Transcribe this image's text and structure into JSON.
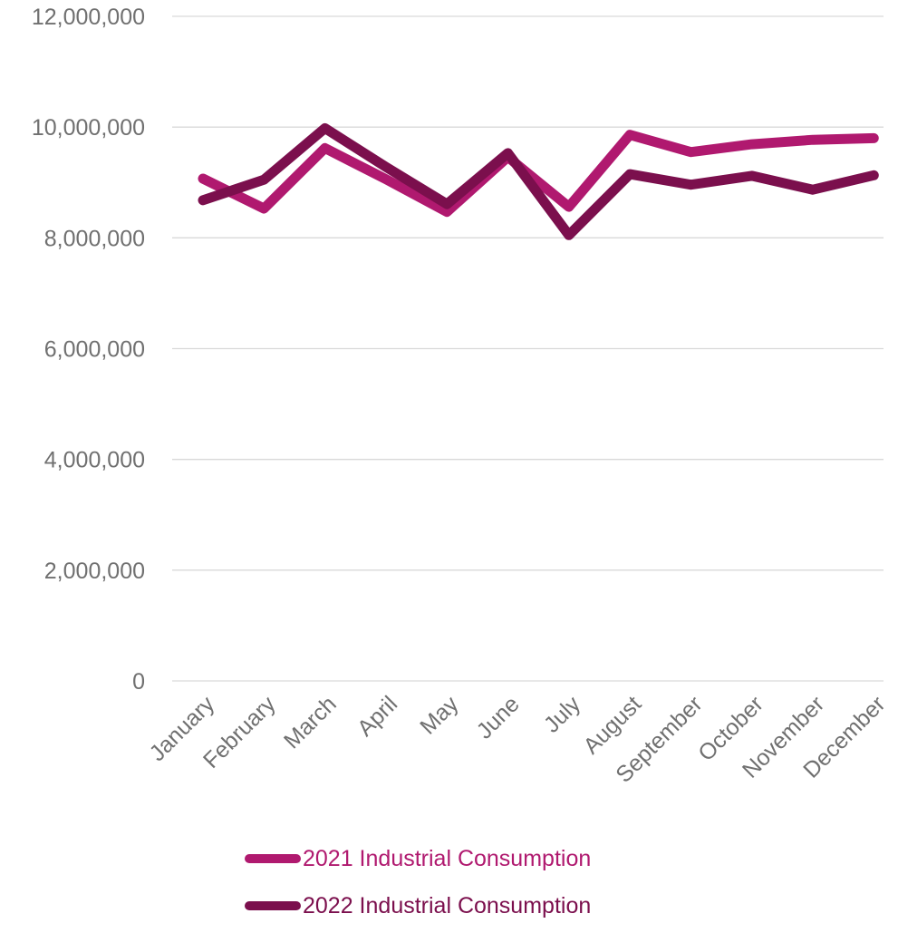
{
  "chart_data": {
    "type": "line",
    "categories": [
      "January",
      "February",
      "March",
      "April",
      "May",
      "June",
      "July",
      "August",
      "September",
      "October",
      "November",
      "December"
    ],
    "series": [
      {
        "name": "2021 Industrial Consumption",
        "color": "#b0196f",
        "values": [
          9070000,
          8530000,
          9620000,
          9060000,
          8470000,
          9460000,
          8560000,
          9860000,
          9550000,
          9690000,
          9770000,
          9800000
        ]
      },
      {
        "name": "2022 Industrial Consumption",
        "color": "#7b0f4d",
        "values": [
          8680000,
          9050000,
          9980000,
          9280000,
          8610000,
          9530000,
          8050000,
          9150000,
          8960000,
          9120000,
          8870000,
          9130000
        ]
      }
    ],
    "yticks": [
      "0",
      "2,000,000",
      "4,000,000",
      "6,000,000",
      "8,000,000",
      "10,000,000",
      "12,000,000"
    ],
    "ylim": [
      0,
      12000000
    ],
    "grid": true,
    "legend_position": "bottom"
  }
}
